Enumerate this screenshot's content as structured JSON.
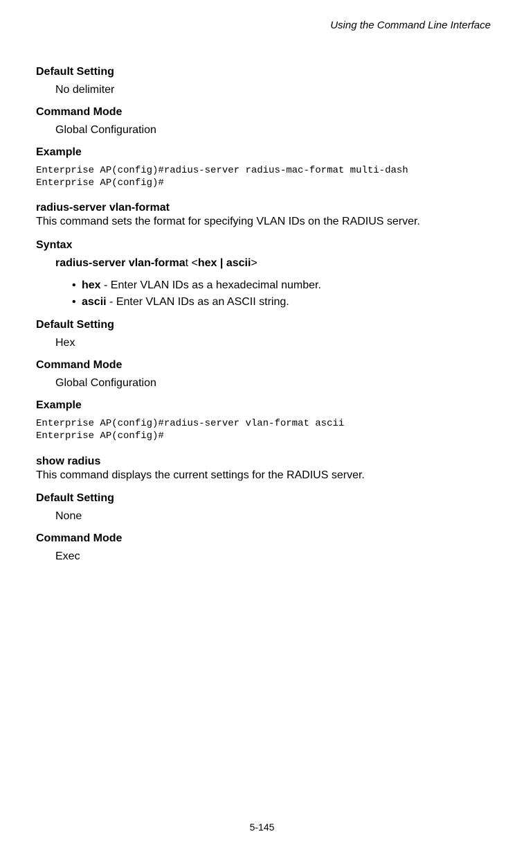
{
  "header": {
    "title": "Using the Command Line Interface"
  },
  "sections": {
    "s1_heading": "Default Setting",
    "s1_text": "No delimiter",
    "s2_heading": "Command Mode",
    "s2_text": "Global Configuration",
    "s3_heading": "Example",
    "code1": "Enterprise AP(config)#radius-server radius-mac-format multi-dash\nEnterprise AP(config)#",
    "cmd1_title": "radius-server vlan-format",
    "cmd1_desc": "This command sets the format for specifying VLAN IDs on the RADIUS server.",
    "s4_heading": "Syntax",
    "syntax_bold1": "radius-server vlan-forma",
    "syntax_plain1": "t <",
    "syntax_bold2": "hex | ascii",
    "syntax_plain2": ">",
    "bullet1_bold": "hex",
    "bullet1_text": " - Enter VLAN IDs as a hexadecimal number.",
    "bullet2_bold": "ascii",
    "bullet2_text": " - Enter VLAN IDs as an ASCII string.",
    "s5_heading": "Default Setting",
    "s5_text": "Hex",
    "s6_heading": "Command Mode",
    "s6_text": "Global Configuration",
    "s7_heading": "Example",
    "code2": "Enterprise AP(config)#radius-server vlan-format ascii\nEnterprise AP(config)#",
    "cmd2_title": "show radius",
    "cmd2_desc": "This command displays the current settings for the RADIUS server.",
    "s8_heading": "Default Setting",
    "s8_text": "None",
    "s9_heading": "Command Mode",
    "s9_text": "Exec"
  },
  "footer": {
    "page": "5-145"
  }
}
